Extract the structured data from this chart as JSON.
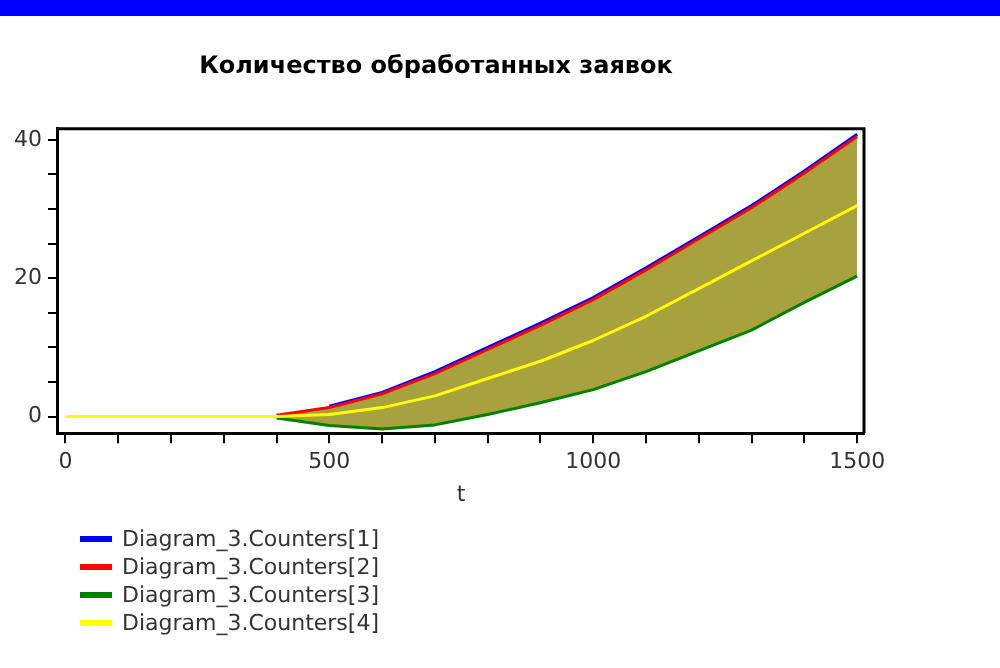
{
  "chart_data": {
    "type": "line",
    "title": "Количество обработанных заявок",
    "xlabel": "t",
    "x": [
      0,
      100,
      200,
      300,
      400,
      500,
      600,
      700,
      800,
      900,
      1000,
      1100,
      1200,
      1300,
      1400,
      1500
    ],
    "series": [
      {
        "name": "Diagram_3.Counters[1]",
        "color": "#0000ff",
        "values": [
          null,
          null,
          null,
          null,
          null,
          1.5,
          3.5,
          6.5,
          10,
          13.5,
          17.2,
          21.5,
          26,
          30.5,
          35.5,
          40.8
        ]
      },
      {
        "name": "Diagram_3.Counters[2]",
        "color": "#ff0000",
        "values": [
          null,
          null,
          null,
          null,
          0.2,
          1.3,
          3.3,
          6.2,
          9.7,
          13.2,
          16.9,
          21.2,
          25.7,
          30.2,
          35.2,
          40.5
        ]
      },
      {
        "name": "Diagram_3.Counters[3]",
        "color": "#008000",
        "values": [
          null,
          null,
          null,
          null,
          -0.2,
          -1.3,
          -1.8,
          -1.2,
          0.3,
          2,
          3.9,
          6.5,
          9.5,
          12.5,
          16.5,
          20.3
        ]
      },
      {
        "name": "Diagram_3.Counters[4]",
        "color": "#ffff00",
        "values": [
          0,
          0,
          0,
          0,
          0,
          0.3,
          1.3,
          3,
          5.5,
          8,
          11,
          14.5,
          18.5,
          22.5,
          26.5,
          30.5
        ],
        "lower": [
          0,
          0,
          0,
          0,
          -0.2,
          -1.3,
          -1.8,
          -1.2,
          0.3,
          2,
          3.9,
          6.5,
          9.5,
          12.5,
          16.5,
          20.3
        ],
        "upper": [
          0,
          0,
          0,
          0,
          0.2,
          1.5,
          3.5,
          6.5,
          10,
          13.5,
          17.2,
          21.5,
          26,
          30.5,
          35.5,
          40.8
        ]
      }
    ],
    "xlim": [
      -14,
      1513
    ],
    "xticks": [
      0,
      {
        "value": 100,
        "label": null
      },
      {
        "value": 200,
        "label": null
      },
      {
        "value": 300,
        "label": null
      },
      {
        "value": 400,
        "label": null
      },
      500,
      {
        "value": 600,
        "label": null
      },
      {
        "value": 700,
        "label": null
      },
      {
        "value": 800,
        "label": null
      },
      {
        "value": 900,
        "label": null
      },
      1000,
      {
        "value": 1100,
        "label": null
      },
      {
        "value": 1200,
        "label": null
      },
      {
        "value": 1300,
        "label": null
      },
      {
        "value": 1400,
        "label": null
      },
      1500
    ],
    "ylim": [
      -2.4,
      41.6
    ],
    "yticks": [
      0,
      {
        "value": 5,
        "label": null
      },
      {
        "value": 10,
        "label": null
      },
      {
        "value": 15,
        "label": null
      },
      20,
      {
        "value": 25,
        "label": null
      },
      {
        "value": 30,
        "label": null
      },
      {
        "value": 35,
        "label": null
      },
      40
    ],
    "grid": false,
    "legend": "bottom left",
    "marker": "none",
    "line_style": "solid"
  }
}
